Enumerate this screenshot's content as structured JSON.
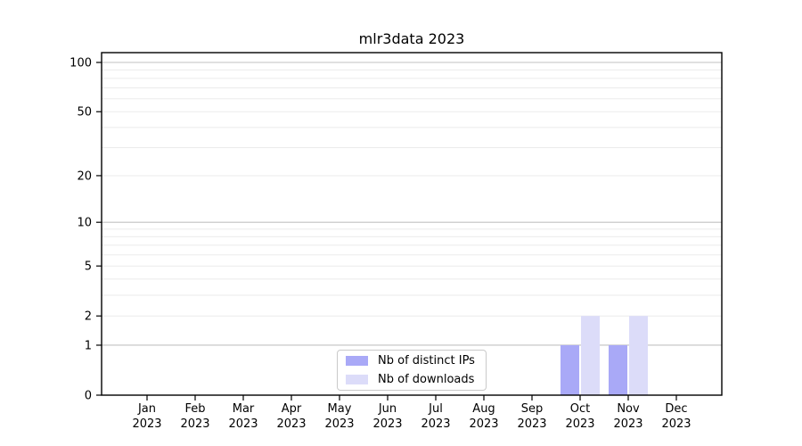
{
  "figure": {
    "background": "#ffffff"
  },
  "chart_data": {
    "type": "bar",
    "title": "mlr3data 2023",
    "x_categories": [
      {
        "month": "Jan",
        "year": "2023"
      },
      {
        "month": "Feb",
        "year": "2023"
      },
      {
        "month": "Mar",
        "year": "2023"
      },
      {
        "month": "Apr",
        "year": "2023"
      },
      {
        "month": "May",
        "year": "2023"
      },
      {
        "month": "Jun",
        "year": "2023"
      },
      {
        "month": "Jul",
        "year": "2023"
      },
      {
        "month": "Aug",
        "year": "2023"
      },
      {
        "month": "Sep",
        "year": "2023"
      },
      {
        "month": "Oct",
        "year": "2023"
      },
      {
        "month": "Nov",
        "year": "2023"
      },
      {
        "month": "Dec",
        "year": "2023"
      }
    ],
    "series": [
      {
        "name": "Nb of distinct IPs",
        "color": "#a9a9f7",
        "values": [
          0,
          0,
          0,
          0,
          0,
          0,
          0,
          0,
          0,
          1,
          1,
          0
        ]
      },
      {
        "name": "Nb of downloads",
        "color": "#dcdcf9",
        "values": [
          0,
          0,
          0,
          0,
          0,
          0,
          0,
          0,
          0,
          2,
          2,
          0
        ]
      }
    ],
    "y_scale": "log1p",
    "y_ticks": [
      0,
      1,
      2,
      5,
      10,
      20,
      50,
      100
    ],
    "y_major_gridlines": [
      1,
      10,
      100
    ],
    "y_minor_gridlines": [
      2,
      3,
      4,
      5,
      6,
      7,
      8,
      9,
      20,
      30,
      40,
      50,
      60,
      70,
      80,
      90
    ],
    "ylim": [
      0,
      115
    ],
    "legend_position": "lower center",
    "colors": {
      "major_grid": "#c2c2c2",
      "minor_grid": "#ebebeb",
      "spine": "#000000",
      "tick": "#000000"
    }
  }
}
